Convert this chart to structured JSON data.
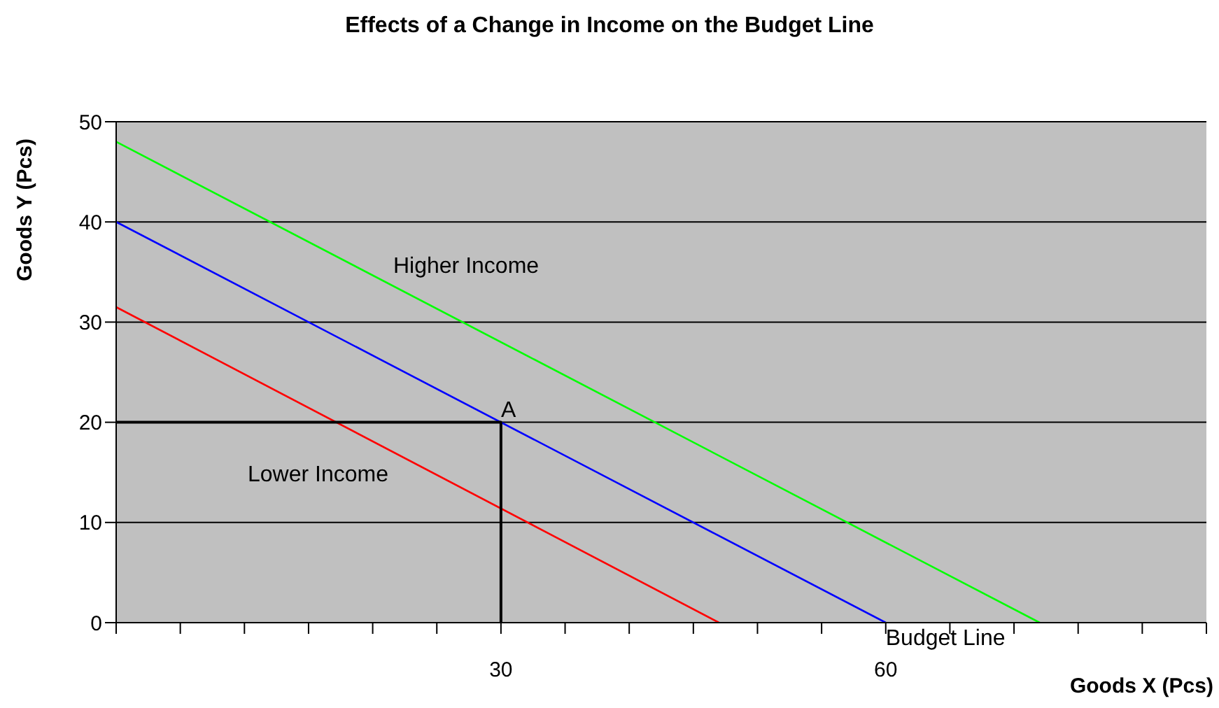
{
  "chart_data": {
    "type": "line",
    "title": "Effects of a Change in Income on the Budget Line",
    "xlabel": "Goods X (Pcs)",
    "ylabel": "Goods Y (Pcs)",
    "series": [
      {
        "x": [
          0,
          72
        ],
        "values": [
          48,
          0
        ],
        "color": "#00ff00"
      },
      {
        "x": [
          0,
          60
        ],
        "values": [
          40,
          0
        ],
        "color": "#0000ff"
      },
      {
        "x": [
          0,
          47
        ],
        "values": [
          31.5,
          0
        ],
        "color": "#ff0000"
      },
      {
        "x": [
          0,
          30,
          30
        ],
        "values": [
          20,
          20,
          0
        ],
        "color": "#000000"
      }
    ],
    "annotations": [
      "Higher Income",
      "Lower Income",
      {
        "text": "A",
        "x": 30,
        "y": 20
      },
      {
        "text": "Budget Line",
        "x": 60,
        "y": 0
      }
    ],
    "xlim": [
      0,
      85
    ],
    "xticks": [
      {
        "value": 0,
        "label": null
      },
      {
        "value": 5,
        "label": null
      },
      {
        "value": 10,
        "label": null
      },
      {
        "value": 15,
        "label": null
      },
      {
        "value": 20,
        "label": null
      },
      {
        "value": 25,
        "label": null
      },
      30,
      {
        "value": 35,
        "label": null
      },
      {
        "value": 40,
        "label": null
      },
      {
        "value": 45,
        "label": null
      },
      {
        "value": 50,
        "label": null
      },
      {
        "value": 55,
        "label": null
      },
      60,
      {
        "value": 65,
        "label": null
      },
      {
        "value": 70,
        "label": null
      },
      {
        "value": 75,
        "label": null
      },
      {
        "value": 80,
        "label": null
      },
      {
        "value": 85,
        "label": null
      }
    ],
    "ylim": [
      0,
      50
    ],
    "yticks": [
      0,
      10,
      20,
      30,
      40,
      50
    ],
    "grid": "y",
    "marker": "none",
    "line_style": "solid"
  }
}
